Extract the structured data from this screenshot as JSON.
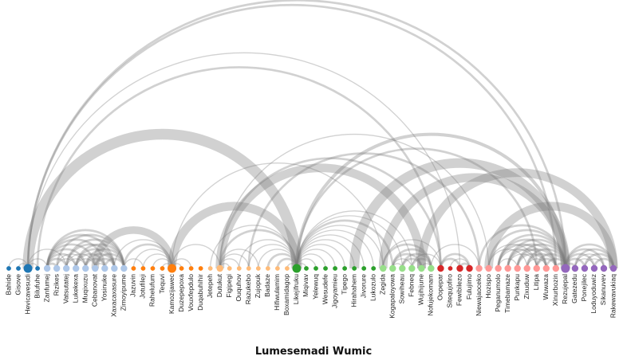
{
  "title": "Lumesemadi Wumic",
  "colors": {
    "link": "#7a7a7a",
    "groups": [
      "#1f77b4",
      "#aec7e8",
      "#ff7f0e",
      "#ffbb78",
      "#2ca02c",
      "#98df8a",
      "#d62728",
      "#ff9896",
      "#9467bd"
    ]
  },
  "nodes": [
    {
      "name": "Bahide",
      "group": 0,
      "size": 1
    },
    {
      "name": "Gisove",
      "group": 0,
      "size": 1
    },
    {
      "name": "Hevicavesudi",
      "group": 0,
      "size": 3
    },
    {
      "name": "Bilufuhe",
      "group": 0,
      "size": 1
    },
    {
      "name": "Zanfumej",
      "group": 1,
      "size": 2
    },
    {
      "name": "Rizikes",
      "group": 1,
      "size": 2
    },
    {
      "name": "Vatsutatej",
      "group": 1,
      "size": 2
    },
    {
      "name": "Lukekexa",
      "group": 1,
      "size": 2
    },
    {
      "name": "Muqixuzu",
      "group": 1,
      "size": 2
    },
    {
      "name": "Cebanovat",
      "group": 1,
      "size": 2
    },
    {
      "name": "Yosinuke",
      "group": 1,
      "size": 2
    },
    {
      "name": "Xaxacaxasure",
      "group": 1,
      "size": 2
    },
    {
      "name": "Zimoyipume",
      "group": 1,
      "size": 2
    },
    {
      "name": "Jazuvin",
      "group": 2,
      "size": 1
    },
    {
      "name": "Jotufileji",
      "group": 2,
      "size": 1
    },
    {
      "name": "Rahelufum",
      "group": 2,
      "size": 1
    },
    {
      "name": "Tequvi",
      "group": 2,
      "size": 1
    },
    {
      "name": "Kamozijawec",
      "group": 2,
      "size": 3
    },
    {
      "name": "Duzepepoxa",
      "group": 2,
      "size": 1
    },
    {
      "name": "Vouxfepdulo",
      "group": 2,
      "size": 1
    },
    {
      "name": "Duqabuhihir",
      "group": 2,
      "size": 1
    },
    {
      "name": "Jetepeh",
      "group": 3,
      "size": 1
    },
    {
      "name": "Dutukut",
      "group": 3,
      "size": 2
    },
    {
      "name": "Figipegi",
      "group": 3,
      "size": 1
    },
    {
      "name": "Ouquhov",
      "group": 3,
      "size": 1
    },
    {
      "name": "Razukebo",
      "group": 3,
      "size": 1
    },
    {
      "name": "Zujopuk",
      "group": 3,
      "size": 1
    },
    {
      "name": "Badaze",
      "group": 3,
      "size": 1
    },
    {
      "name": "Hifiwulamim",
      "group": 3,
      "size": 1
    },
    {
      "name": "Boxamidagop",
      "group": 3,
      "size": 1
    },
    {
      "name": "Likejifruku",
      "group": 4,
      "size": 3
    },
    {
      "name": "Miqivav",
      "group": 4,
      "size": 1
    },
    {
      "name": "Yelewuq",
      "group": 4,
      "size": 1
    },
    {
      "name": "Wesudefe",
      "group": 4,
      "size": 1
    },
    {
      "name": "Jigoyamieu",
      "group": 4,
      "size": 1
    },
    {
      "name": "Tipego",
      "group": 4,
      "size": 1
    },
    {
      "name": "Hirahahem",
      "group": 4,
      "size": 1
    },
    {
      "name": "Jivorure",
      "group": 4,
      "size": 1
    },
    {
      "name": "Lukozulo",
      "group": 4,
      "size": 1
    },
    {
      "name": "Zegida",
      "group": 5,
      "size": 2
    },
    {
      "name": "Kogapaloyowa",
      "group": 5,
      "size": 2
    },
    {
      "name": "Sowiheau",
      "group": 5,
      "size": 2
    },
    {
      "name": "Febneq",
      "group": 5,
      "size": 2
    },
    {
      "name": "Wujihijune",
      "group": 5,
      "size": 2
    },
    {
      "name": "Nofujekomam",
      "group": 5,
      "size": 2
    },
    {
      "name": "Oopepar",
      "group": 6,
      "size": 2
    },
    {
      "name": "Sitequjofiro",
      "group": 6,
      "size": 1
    },
    {
      "name": "Fewibilezo",
      "group": 6,
      "size": 2
    },
    {
      "name": "Fulujimo",
      "group": 6,
      "size": 2
    },
    {
      "name": "Niewajaoceko",
      "group": 7,
      "size": 2
    },
    {
      "name": "Hozispo",
      "group": 7,
      "size": 2
    },
    {
      "name": "Peganumolo",
      "group": 7,
      "size": 2
    },
    {
      "name": "Timebamaze",
      "group": 7,
      "size": 2
    },
    {
      "name": "Punkapu",
      "group": 7,
      "size": 2
    },
    {
      "name": "Zixuduw",
      "group": 7,
      "size": 2
    },
    {
      "name": "Litipa",
      "group": 7,
      "size": 2
    },
    {
      "name": "Wuwaza",
      "group": 7,
      "size": 2
    },
    {
      "name": "Xinurbozin",
      "group": 7,
      "size": 2
    },
    {
      "name": "Rezujepal",
      "group": 8,
      "size": 3
    },
    {
      "name": "Gatezedu",
      "group": 8,
      "size": 2
    },
    {
      "name": "Ponejilec",
      "group": 8,
      "size": 2
    },
    {
      "name": "Loduyoduwiz",
      "group": 8,
      "size": 2
    },
    {
      "name": "Sikanuvev",
      "group": 8,
      "size": 2
    },
    {
      "name": "Rakewavukiaq",
      "group": 8,
      "size": 2
    }
  ],
  "links": [
    {
      "source": 2,
      "target": 58,
      "value": 2
    },
    {
      "source": 2,
      "target": 57,
      "value": 2
    },
    {
      "source": 2,
      "target": 47,
      "value": 1
    },
    {
      "source": 3,
      "target": 45,
      "value": 2
    },
    {
      "source": 2,
      "target": 30,
      "value": 10
    },
    {
      "source": 0,
      "target": 2,
      "value": 1
    },
    {
      "source": 1,
      "target": 2,
      "value": 1
    },
    {
      "source": 2,
      "target": 3,
      "value": 1
    },
    {
      "source": 2,
      "target": 4,
      "value": 1
    },
    {
      "source": 2,
      "target": 6,
      "value": 1
    },
    {
      "source": 4,
      "target": 5,
      "value": 2
    },
    {
      "source": 4,
      "target": 6,
      "value": 2
    },
    {
      "source": 4,
      "target": 7,
      "value": 2
    },
    {
      "source": 4,
      "target": 8,
      "value": 2
    },
    {
      "source": 4,
      "target": 9,
      "value": 2
    },
    {
      "source": 4,
      "target": 10,
      "value": 2
    },
    {
      "source": 4,
      "target": 11,
      "value": 2
    },
    {
      "source": 4,
      "target": 12,
      "value": 2
    },
    {
      "source": 5,
      "target": 12,
      "value": 2
    },
    {
      "source": 6,
      "target": 12,
      "value": 2
    },
    {
      "source": 7,
      "target": 12,
      "value": 2
    },
    {
      "source": 8,
      "target": 12,
      "value": 2
    },
    {
      "source": 9,
      "target": 12,
      "value": 2
    },
    {
      "source": 10,
      "target": 12,
      "value": 2
    },
    {
      "source": 6,
      "target": 11,
      "value": 2
    },
    {
      "source": 7,
      "target": 11,
      "value": 2
    },
    {
      "source": 8,
      "target": 11,
      "value": 2
    },
    {
      "source": 9,
      "target": 11,
      "value": 2
    },
    {
      "source": 7,
      "target": 10,
      "value": 2
    },
    {
      "source": 8,
      "target": 10,
      "value": 2
    },
    {
      "source": 9,
      "target": 10,
      "value": 1
    },
    {
      "source": 7,
      "target": 9,
      "value": 1
    },
    {
      "source": 6,
      "target": 9,
      "value": 1
    },
    {
      "source": 6,
      "target": 8,
      "value": 1
    },
    {
      "source": 5,
      "target": 8,
      "value": 1
    },
    {
      "source": 5,
      "target": 7,
      "value": 1
    },
    {
      "source": 9,
      "target": 17,
      "value": 7
    },
    {
      "source": 12,
      "target": 17,
      "value": 2
    },
    {
      "source": 11,
      "target": 17,
      "value": 1
    },
    {
      "source": 12,
      "target": 14,
      "value": 1
    },
    {
      "source": 13,
      "target": 17,
      "value": 1
    },
    {
      "source": 14,
      "target": 17,
      "value": 1
    },
    {
      "source": 15,
      "target": 17,
      "value": 1
    },
    {
      "source": 16,
      "target": 17,
      "value": 1
    },
    {
      "source": 17,
      "target": 18,
      "value": 1
    },
    {
      "source": 17,
      "target": 19,
      "value": 1
    },
    {
      "source": 17,
      "target": 22,
      "value": 1
    },
    {
      "source": 17,
      "target": 30,
      "value": 8
    },
    {
      "source": 17,
      "target": 39,
      "value": 1
    },
    {
      "source": 22,
      "target": 30,
      "value": 2
    },
    {
      "source": 21,
      "target": 30,
      "value": 1
    },
    {
      "source": 22,
      "target": 23,
      "value": 1
    },
    {
      "source": 22,
      "target": 24,
      "value": 1
    },
    {
      "source": 22,
      "target": 25,
      "value": 1
    },
    {
      "source": 22,
      "target": 26,
      "value": 1
    },
    {
      "source": 22,
      "target": 43,
      "value": 8
    },
    {
      "source": 22,
      "target": 45,
      "value": 2
    },
    {
      "source": 22,
      "target": 50,
      "value": 1
    },
    {
      "source": 25,
      "target": 49,
      "value": 2
    },
    {
      "source": 26,
      "target": 30,
      "value": 1
    },
    {
      "source": 27,
      "target": 30,
      "value": 2
    },
    {
      "source": 28,
      "target": 30,
      "value": 2
    },
    {
      "source": 29,
      "target": 30,
      "value": 1
    },
    {
      "source": 25,
      "target": 30,
      "value": 1
    },
    {
      "source": 24,
      "target": 30,
      "value": 1
    },
    {
      "source": 30,
      "target": 31,
      "value": 1
    },
    {
      "source": 30,
      "target": 32,
      "value": 1
    },
    {
      "source": 30,
      "target": 33,
      "value": 1
    },
    {
      "source": 30,
      "target": 34,
      "value": 1
    },
    {
      "source": 30,
      "target": 35,
      "value": 1
    },
    {
      "source": 30,
      "target": 36,
      "value": 1
    },
    {
      "source": 30,
      "target": 37,
      "value": 1
    },
    {
      "source": 30,
      "target": 38,
      "value": 1
    },
    {
      "source": 30,
      "target": 39,
      "value": 1
    },
    {
      "source": 30,
      "target": 40,
      "value": 2
    },
    {
      "source": 30,
      "target": 41,
      "value": 1
    },
    {
      "source": 30,
      "target": 42,
      "value": 1
    },
    {
      "source": 30,
      "target": 55,
      "value": 2
    },
    {
      "source": 30,
      "target": 58,
      "value": 3
    },
    {
      "source": 36,
      "target": 58,
      "value": 9
    },
    {
      "source": 39,
      "target": 58,
      "value": 8
    },
    {
      "source": 40,
      "target": 44,
      "value": 2
    },
    {
      "source": 40,
      "target": 43,
      "value": 2
    },
    {
      "source": 40,
      "target": 42,
      "value": 1
    },
    {
      "source": 40,
      "target": 41,
      "value": 1
    },
    {
      "source": 41,
      "target": 44,
      "value": 2
    },
    {
      "source": 41,
      "target": 43,
      "value": 2
    },
    {
      "source": 42,
      "target": 44,
      "value": 2
    },
    {
      "source": 42,
      "target": 45,
      "value": 1
    },
    {
      "source": 43,
      "target": 44,
      "value": 1
    },
    {
      "source": 39,
      "target": 45,
      "value": 1
    },
    {
      "source": 39,
      "target": 44,
      "value": 2
    },
    {
      "source": 45,
      "target": 47,
      "value": 2
    },
    {
      "source": 45,
      "target": 48,
      "value": 2
    },
    {
      "source": 46,
      "target": 48,
      "value": 1
    },
    {
      "source": 47,
      "target": 48,
      "value": 2
    },
    {
      "source": 44,
      "target": 49,
      "value": 1
    },
    {
      "source": 43,
      "target": 63,
      "value": 8
    },
    {
      "source": 49,
      "target": 58,
      "value": 2
    },
    {
      "source": 50,
      "target": 58,
      "value": 2
    },
    {
      "source": 51,
      "target": 58,
      "value": 2
    },
    {
      "source": 52,
      "target": 58,
      "value": 2
    },
    {
      "source": 53,
      "target": 58,
      "value": 2
    },
    {
      "source": 54,
      "target": 58,
      "value": 2
    },
    {
      "source": 55,
      "target": 58,
      "value": 2
    },
    {
      "source": 56,
      "target": 58,
      "value": 2
    },
    {
      "source": 57,
      "target": 58,
      "value": 2
    },
    {
      "source": 51,
      "target": 57,
      "value": 2
    },
    {
      "source": 52,
      "target": 57,
      "value": 2
    },
    {
      "source": 53,
      "target": 57,
      "value": 2
    },
    {
      "source": 54,
      "target": 57,
      "value": 2
    },
    {
      "source": 55,
      "target": 57,
      "value": 2
    },
    {
      "source": 51,
      "target": 56,
      "value": 2
    },
    {
      "source": 52,
      "target": 56,
      "value": 2
    },
    {
      "source": 53,
      "target": 56,
      "value": 2
    },
    {
      "source": 54,
      "target": 56,
      "value": 1
    },
    {
      "source": 50,
      "target": 55,
      "value": 1
    },
    {
      "source": 51,
      "target": 55,
      "value": 1
    },
    {
      "source": 52,
      "target": 55,
      "value": 1
    },
    {
      "source": 50,
      "target": 54,
      "value": 1
    },
    {
      "source": 51,
      "target": 53,
      "value": 1
    },
    {
      "source": 50,
      "target": 63,
      "value": 8
    },
    {
      "source": 58,
      "target": 59,
      "value": 2
    },
    {
      "source": 58,
      "target": 60,
      "value": 2
    },
    {
      "source": 58,
      "target": 61,
      "value": 2
    },
    {
      "source": 58,
      "target": 62,
      "value": 2
    },
    {
      "source": 58,
      "target": 63,
      "value": 2
    },
    {
      "source": 59,
      "target": 63,
      "value": 2
    },
    {
      "source": 60,
      "target": 63,
      "value": 2
    },
    {
      "source": 61,
      "target": 63,
      "value": 2
    },
    {
      "source": 60,
      "target": 62,
      "value": 1
    },
    {
      "source": 59,
      "target": 62,
      "value": 1
    },
    {
      "source": 59,
      "target": 61,
      "value": 1
    }
  ]
}
